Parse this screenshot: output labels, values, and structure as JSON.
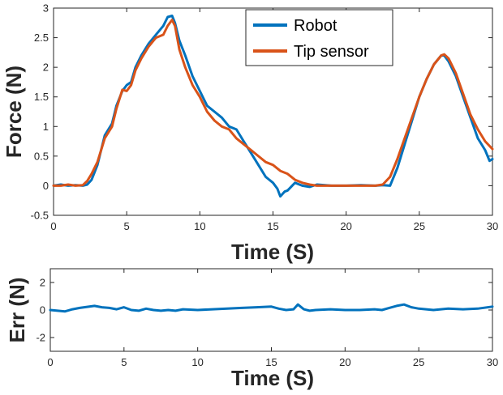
{
  "colors": {
    "robot": "#0072BD",
    "tip_sensor": "#D95319",
    "axis": "#262626"
  },
  "chart_data": [
    {
      "type": "line",
      "title": "",
      "xlabel": "Time (S)",
      "ylabel": "Force (N)",
      "xlim": [
        0,
        30
      ],
      "ylim": [
        -0.5,
        3
      ],
      "xticks": [
        0,
        5,
        10,
        15,
        20,
        25,
        30
      ],
      "xtick_labels": [
        "0",
        "5",
        "10",
        "15",
        "20",
        "25",
        "30"
      ],
      "yticks": [
        -0.5,
        0,
        0.5,
        1,
        1.5,
        2,
        2.5,
        3
      ],
      "ytick_labels": [
        "-0.5",
        "0",
        "0.5",
        "1",
        "1.5",
        "2",
        "2.5",
        "3"
      ],
      "grid": false,
      "legend_position": "top-right",
      "series": [
        {
          "name": "Robot",
          "color": "#0072BD",
          "x": [
            0,
            0.5,
            1,
            1.5,
            2,
            2.3,
            2.6,
            3,
            3.5,
            4,
            4.3,
            4.7,
            5,
            5.3,
            5.6,
            6,
            6.5,
            7,
            7.5,
            7.8,
            8.1,
            8.3,
            8.6,
            9,
            9.5,
            10,
            10.5,
            11,
            11.5,
            12,
            12.5,
            13,
            13.5,
            14,
            14.5,
            15,
            15.3,
            15.5,
            15.8,
            16,
            16.5,
            17,
            17.5,
            18,
            19,
            20,
            21,
            22,
            22.5,
            23,
            23.5,
            24,
            24.5,
            25,
            25.5,
            26,
            26.5,
            26.7,
            27,
            27.5,
            28,
            28.5,
            29,
            29.5,
            29.8,
            30
          ],
          "y": [
            0,
            0.02,
            0,
            0.01,
            0,
            0.02,
            0.1,
            0.35,
            0.85,
            1.05,
            1.35,
            1.6,
            1.7,
            1.75,
            2.0,
            2.2,
            2.4,
            2.55,
            2.7,
            2.85,
            2.87,
            2.75,
            2.45,
            2.2,
            1.85,
            1.6,
            1.35,
            1.25,
            1.15,
            1.0,
            0.95,
            0.75,
            0.55,
            0.35,
            0.15,
            0.05,
            -0.05,
            -0.18,
            -0.1,
            -0.08,
            0.05,
            0.0,
            -0.02,
            0.02,
            0.0,
            0.0,
            0.01,
            0.0,
            0.01,
            0.0,
            0.3,
            0.7,
            1.1,
            1.5,
            1.8,
            2.05,
            2.2,
            2.2,
            2.1,
            1.85,
            1.5,
            1.15,
            0.8,
            0.6,
            0.42,
            0.45
          ]
        },
        {
          "name": "Tip sensor",
          "color": "#D95319",
          "x": [
            0,
            0.5,
            1,
            1.5,
            2,
            2.3,
            2.6,
            3,
            3.5,
            4,
            4.3,
            4.7,
            5,
            5.3,
            5.6,
            6,
            6.5,
            7,
            7.5,
            7.8,
            8.1,
            8.3,
            8.6,
            9,
            9.5,
            10,
            10.5,
            11,
            11.5,
            12,
            12.5,
            13,
            13.5,
            14,
            14.5,
            15,
            15.5,
            16,
            16.5,
            17,
            17.5,
            18,
            19,
            20,
            21,
            22,
            22.5,
            23,
            23.5,
            24,
            24.5,
            25,
            25.5,
            26,
            26.5,
            26.7,
            27,
            27.5,
            28,
            28.5,
            29,
            29.5,
            30
          ],
          "y": [
            0,
            0.0,
            0.02,
            0.0,
            0.01,
            0.08,
            0.2,
            0.4,
            0.8,
            1.0,
            1.3,
            1.62,
            1.6,
            1.7,
            1.95,
            2.15,
            2.35,
            2.5,
            2.55,
            2.7,
            2.8,
            2.7,
            2.3,
            2.0,
            1.7,
            1.5,
            1.25,
            1.1,
            1.0,
            0.95,
            0.8,
            0.7,
            0.6,
            0.5,
            0.4,
            0.35,
            0.25,
            0.2,
            0.1,
            0.05,
            0.02,
            0.0,
            0.0,
            0.0,
            0.0,
            0.0,
            0.02,
            0.15,
            0.45,
            0.8,
            1.15,
            1.5,
            1.8,
            2.05,
            2.2,
            2.22,
            2.15,
            1.9,
            1.55,
            1.2,
            0.95,
            0.75,
            0.62
          ]
        }
      ]
    },
    {
      "type": "line",
      "title": "",
      "xlabel": "Time (S)",
      "ylabel": "Err (N)",
      "xlim": [
        0,
        30
      ],
      "ylim": [
        -3,
        3
      ],
      "xticks": [
        0,
        5,
        10,
        15,
        20,
        25,
        30
      ],
      "xtick_labels": [
        "0",
        "5",
        "10",
        "15",
        "20",
        "25",
        "30"
      ],
      "yticks": [
        -2,
        0,
        2
      ],
      "ytick_labels": [
        "-2",
        "0",
        "2"
      ],
      "grid": false,
      "series": [
        {
          "color": "#0072BD",
          "x": [
            0,
            1,
            1.5,
            2,
            3,
            3.5,
            4,
            4.5,
            5,
            5.5,
            6,
            6.5,
            7,
            7.5,
            8,
            8.5,
            9,
            10,
            11,
            12,
            13,
            14,
            15,
            15.5,
            16,
            16.5,
            16.8,
            17.2,
            17.6,
            18,
            19,
            20,
            21,
            22,
            22.5,
            23,
            23.5,
            24,
            24.5,
            25,
            26,
            27,
            28,
            29,
            30
          ],
          "y": [
            0,
            -0.1,
            0.05,
            0.15,
            0.3,
            0.2,
            0.15,
            0.05,
            0.2,
            0.0,
            -0.05,
            0.1,
            0.0,
            -0.05,
            0.0,
            -0.05,
            0.05,
            0.0,
            0.05,
            0.1,
            0.15,
            0.2,
            0.25,
            0.1,
            0.0,
            0.05,
            0.4,
            0.05,
            -0.05,
            0.0,
            0.05,
            0.0,
            0.0,
            0.05,
            0.0,
            0.15,
            0.3,
            0.4,
            0.2,
            0.1,
            0.0,
            0.1,
            0.05,
            0.1,
            0.25
          ]
        }
      ]
    }
  ]
}
